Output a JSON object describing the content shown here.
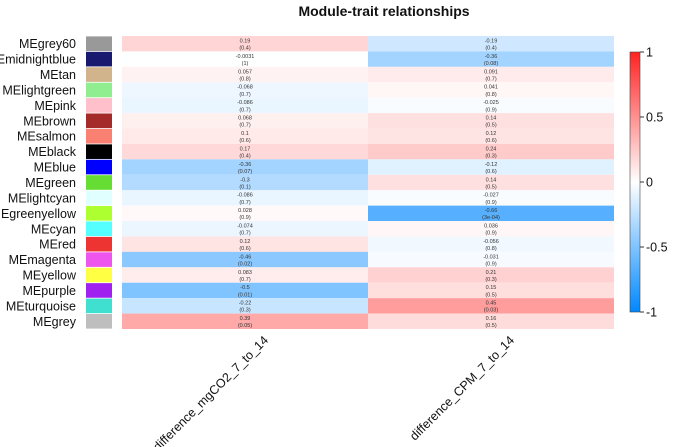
{
  "chart_data": {
    "type": "heatmap",
    "title": "Module-trait relationships",
    "rows": [
      {
        "name": "MEgrey60",
        "color": "#999999"
      },
      {
        "name": "MEmidnightblue",
        "color": "#191970"
      },
      {
        "name": "MEtan",
        "color": "#D2B48C"
      },
      {
        "name": "MElightgreen",
        "color": "#90EE90"
      },
      {
        "name": "MEpink",
        "color": "#FFC0CB"
      },
      {
        "name": "MEbrown",
        "color": "#A52A2A"
      },
      {
        "name": "MEsalmon",
        "color": "#FA8072"
      },
      {
        "name": "MEblack",
        "color": "#000000"
      },
      {
        "name": "MEblue",
        "color": "#0000FF"
      },
      {
        "name": "MEgreen",
        "color": "#66DD33"
      },
      {
        "name": "MElightcyan",
        "color": "#E0FFFF"
      },
      {
        "name": "MEgreenyellow",
        "color": "#ADFF2F"
      },
      {
        "name": "MEcyan",
        "color": "#55FFFF"
      },
      {
        "name": "MEred",
        "color": "#EE3333"
      },
      {
        "name": "MEmagenta",
        "color": "#EE55EE"
      },
      {
        "name": "MEyellow",
        "color": "#FFFF44"
      },
      {
        "name": "MEpurple",
        "color": "#A020F0"
      },
      {
        "name": "MEturquoise",
        "color": "#40E0D0"
      },
      {
        "name": "MEgrey",
        "color": "#BEBEBE"
      }
    ],
    "columns": [
      "difference_mgCO2_7_to_14",
      "difference_CPM_7_to_14"
    ],
    "values": [
      [
        0.19,
        -0.19
      ],
      [
        -0.0031,
        -0.36
      ],
      [
        0.057,
        0.091
      ],
      [
        -0.068,
        0.041
      ],
      [
        -0.086,
        -0.025
      ],
      [
        0.068,
        0.14
      ],
      [
        0.1,
        0.12
      ],
      [
        0.17,
        0.24
      ],
      [
        -0.36,
        -0.12
      ],
      [
        -0.3,
        0.14
      ],
      [
        -0.086,
        -0.027
      ],
      [
        0.028,
        -0.66
      ],
      [
        -0.074,
        0.036
      ],
      [
        0.12,
        -0.056
      ],
      [
        -0.46,
        -0.031
      ],
      [
        0.083,
        0.21
      ],
      [
        -0.5,
        0.15
      ],
      [
        -0.22,
        0.45
      ],
      [
        0.39,
        0.16
      ]
    ],
    "pvalues": [
      [
        "(0.4)",
        "(0.4)"
      ],
      [
        "(1)",
        "(0.08)"
      ],
      [
        "(0.8)",
        "(0.7)"
      ],
      [
        "(0.7)",
        "(0.8)"
      ],
      [
        "(0.7)",
        "(0.9)"
      ],
      [
        "(0.7)",
        "(0.5)"
      ],
      [
        "(0.6)",
        "(0.6)"
      ],
      [
        "(0.4)",
        "(0.3)"
      ],
      [
        "(0.07)",
        "(0.6)"
      ],
      [
        "(0.1)",
        "(0.5)"
      ],
      [
        "(0.7)",
        "(0.9)"
      ],
      [
        "(0.9)",
        "(3e-04)"
      ],
      [
        "(0.7)",
        "(0.9)"
      ],
      [
        "(0.6)",
        "(0.8)"
      ],
      [
        "(0.02)",
        "(0.9)"
      ],
      [
        "(0.7)",
        "(0.3)"
      ],
      [
        "(0.01)",
        "(0.5)"
      ],
      [
        "(0.3)",
        "(0.03)"
      ],
      [
        "(0.05)",
        "(0.5)"
      ]
    ],
    "value_labels": [
      [
        "0.19",
        "-0.19"
      ],
      [
        "-0.0031",
        "-0.36"
      ],
      [
        "0.057",
        "0.091"
      ],
      [
        "-0.068",
        "0.041"
      ],
      [
        "-0.086",
        "-0.025"
      ],
      [
        "0.068",
        "0.14"
      ],
      [
        "0.1",
        "0.12"
      ],
      [
        "0.17",
        "0.24"
      ],
      [
        "-0.36",
        "-0.12"
      ],
      [
        "-0.3",
        "0.14"
      ],
      [
        "-0.086",
        "-0.027"
      ],
      [
        "0.028",
        "-0.66"
      ],
      [
        "-0.074",
        "0.036"
      ],
      [
        "0.12",
        "-0.056"
      ],
      [
        "-0.46",
        "-0.031"
      ],
      [
        "0.083",
        "0.21"
      ],
      [
        "-0.5",
        "0.15"
      ],
      [
        "-0.22",
        "0.45"
      ],
      [
        "0.39",
        "0.16"
      ]
    ],
    "color_scale": {
      "min": -1,
      "max": 1,
      "low_color": "#0088ff",
      "mid_color": "#ffffff",
      "high_color": "#ff2222"
    },
    "legend_ticks": [
      "1",
      "0.5",
      "0",
      "-0.5",
      "-1"
    ],
    "legend_placement": "right",
    "grid": false
  }
}
